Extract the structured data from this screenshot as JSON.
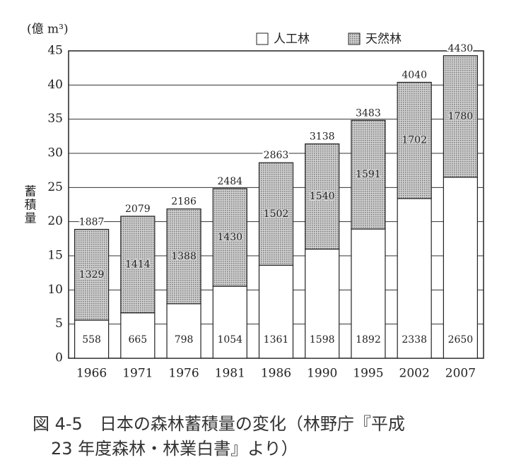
{
  "chart_data": {
    "type": "stacked_bar",
    "y_unit_label": "(億 m³)",
    "y_label": "蓄積量",
    "categories": [
      "1966",
      "1971",
      "1976",
      "1981",
      "1986",
      "1990",
      "1995",
      "2002",
      "2007"
    ],
    "series": [
      {
        "name": "人工林",
        "color": "#ffffff",
        "values": [
          5.58,
          6.65,
          7.98,
          10.54,
          13.61,
          15.98,
          18.92,
          23.38,
          26.5
        ],
        "value_labels": [
          "558",
          "665",
          "798",
          "1054",
          "1361",
          "1598",
          "1892",
          "2338",
          "2650"
        ]
      },
      {
        "name": "天然林",
        "color": "#b4b4b4",
        "values": [
          13.29,
          14.14,
          13.88,
          14.3,
          15.02,
          15.4,
          15.91,
          17.02,
          17.8
        ],
        "value_labels": [
          "1329",
          "1414",
          "1388",
          "1430",
          "1502",
          "1540",
          "1591",
          "1702",
          "1780"
        ]
      }
    ],
    "totals": {
      "values": [
        18.87,
        20.79,
        21.86,
        24.84,
        28.63,
        31.38,
        34.83,
        40.4,
        44.3
      ],
      "value_labels": [
        "1887",
        "2079",
        "2186",
        "2484",
        "2863",
        "3138",
        "3483",
        "4040",
        "4430"
      ]
    },
    "ylim": [
      0,
      45
    ],
    "yticks": [
      0,
      5,
      10,
      15,
      20,
      25,
      30,
      35,
      40,
      45
    ],
    "grid": true,
    "legend": "top-right",
    "caption": [
      "図 4-5　日本の森林蓄積量の変化（林野庁『平成",
      "23 年度森林・林業白書』より）"
    ]
  }
}
